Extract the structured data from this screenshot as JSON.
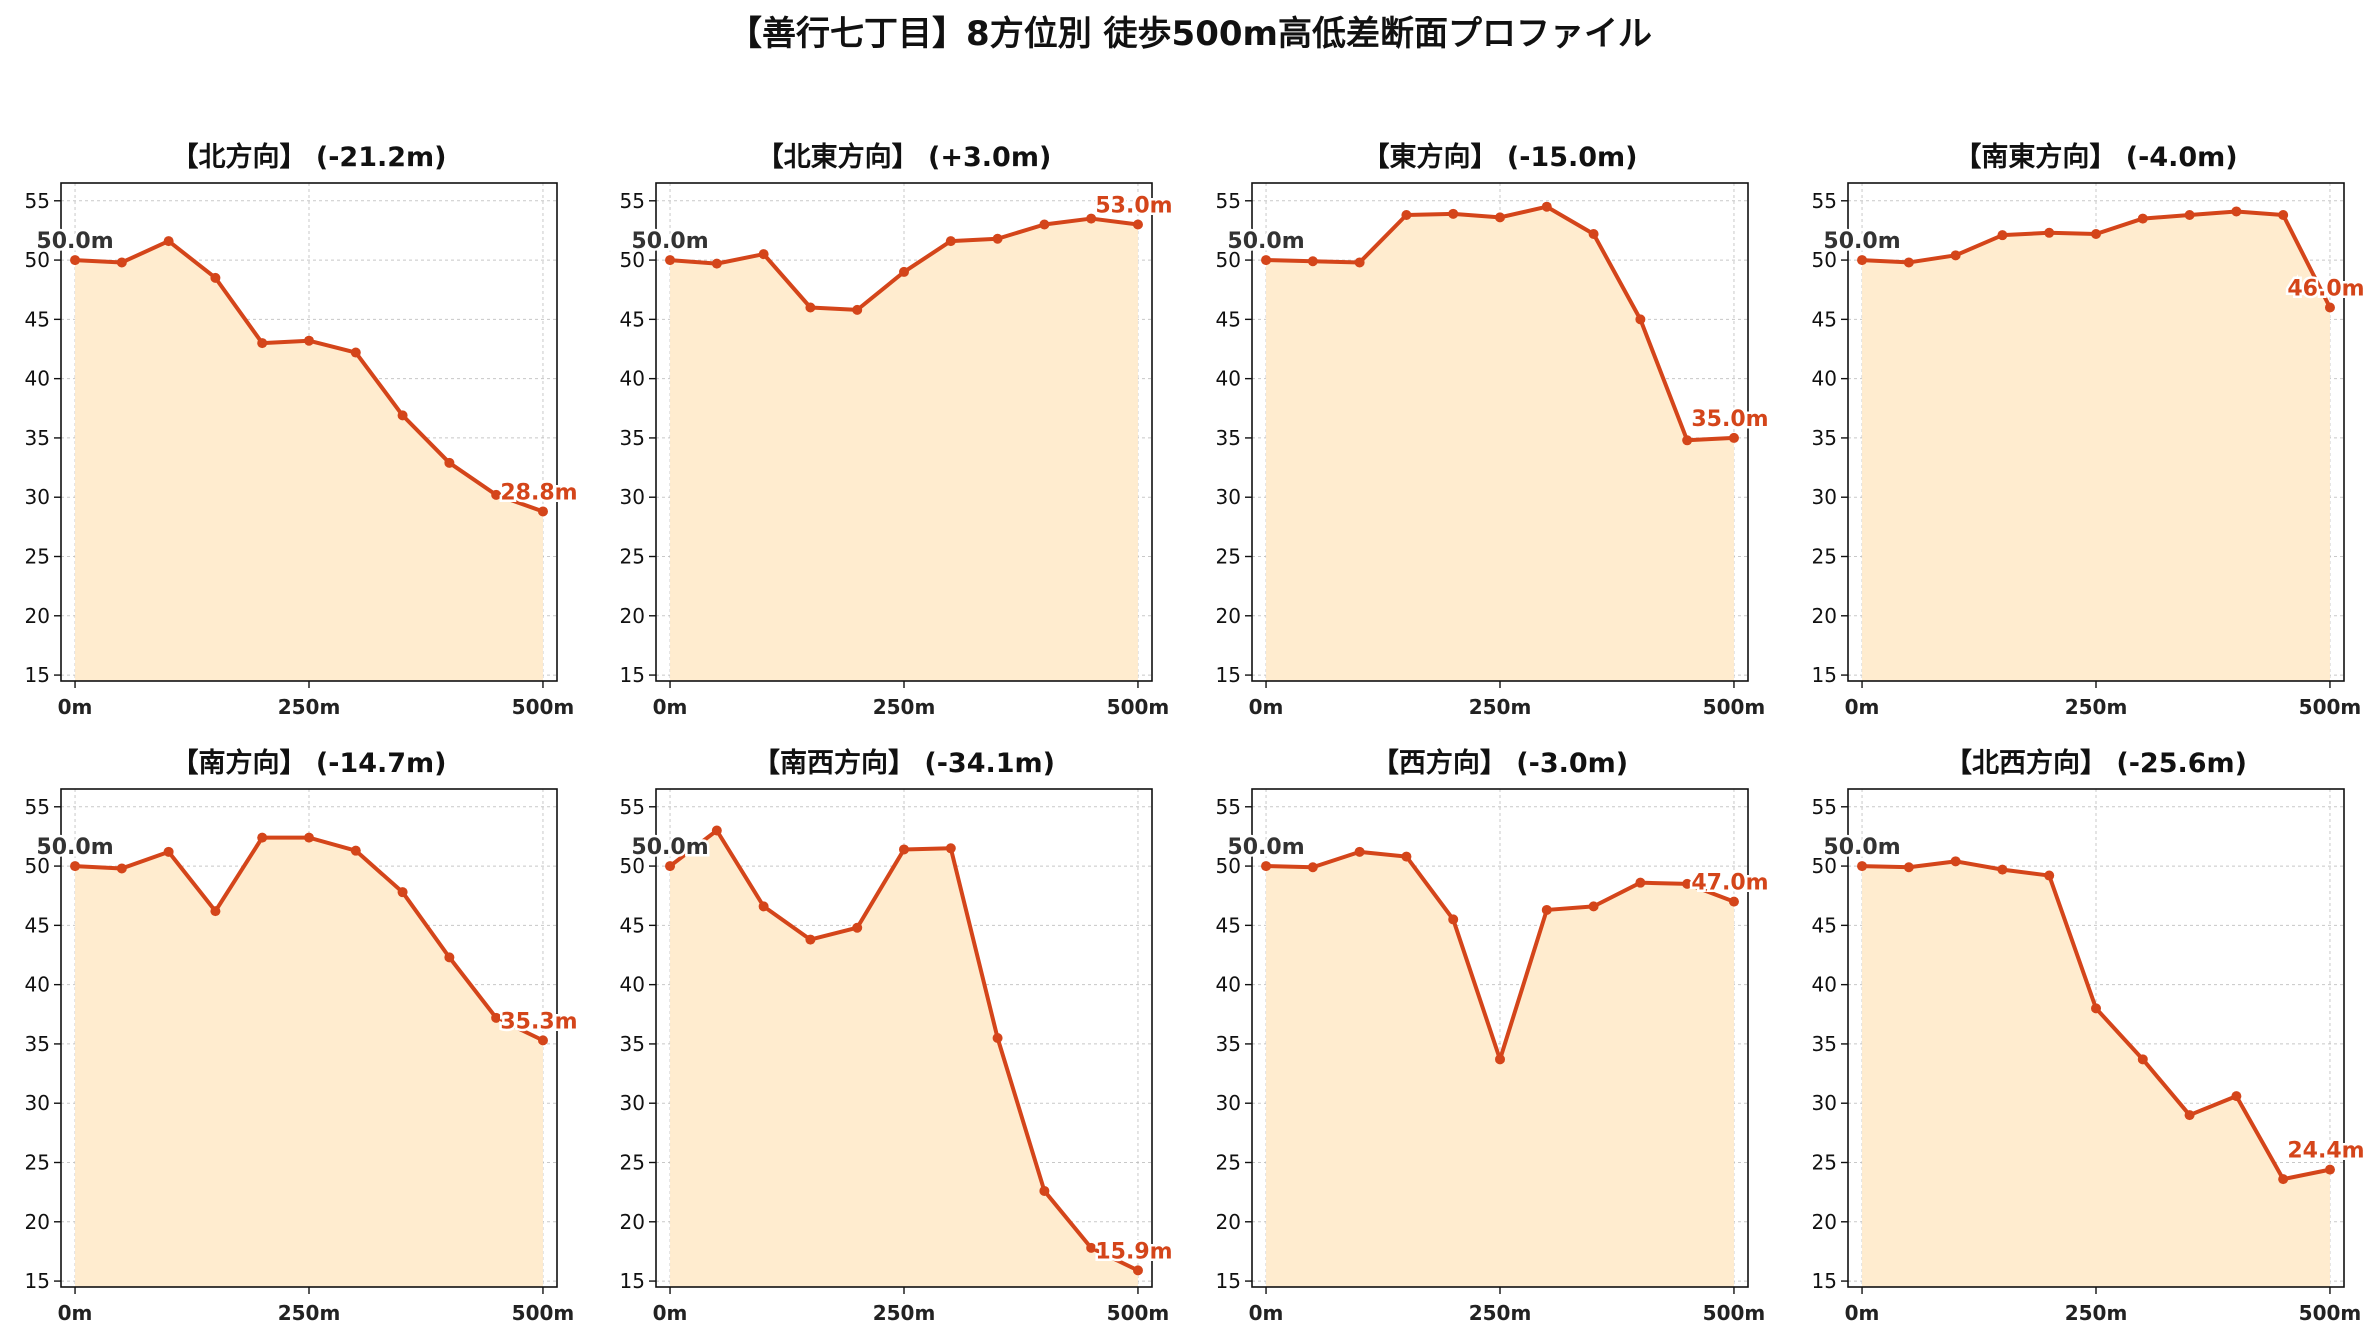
{
  "page": {
    "title": "【善行七丁目】8方位別 徒歩500m高低差断面プロファイル"
  },
  "colors": {
    "line": "#d4451a",
    "fill": "#ffeccf",
    "start_label": "#333333",
    "end_label": "#d4451a",
    "grid": "#bbbbbb"
  },
  "chart_data": [
    {
      "type": "area",
      "title": "【北方向】 (-21.2m)",
      "x": [
        0,
        50,
        100,
        150,
        200,
        250,
        300,
        350,
        400,
        450,
        500
      ],
      "values": [
        50.0,
        49.8,
        51.6,
        48.5,
        43.0,
        43.2,
        42.2,
        36.9,
        32.9,
        30.2,
        28.8
      ],
      "start_label": "50.0m",
      "end_label": "28.8m",
      "xtick_labels": [
        "0m",
        "250m",
        "500m"
      ],
      "xticks": [
        0,
        250,
        500
      ],
      "yticks": [
        15,
        20,
        25,
        30,
        35,
        40,
        45,
        50,
        55
      ],
      "xlim": [
        -15,
        515
      ],
      "ylim": [
        14.5,
        56.5
      ],
      "grid": true
    },
    {
      "type": "area",
      "title": "【北東方向】 (+3.0m)",
      "x": [
        0,
        50,
        100,
        150,
        200,
        250,
        300,
        350,
        400,
        450,
        500
      ],
      "values": [
        50.0,
        49.7,
        50.5,
        46.0,
        45.8,
        49.0,
        51.6,
        51.8,
        53.0,
        53.5,
        53.0
      ],
      "start_label": "50.0m",
      "end_label": "53.0m",
      "xtick_labels": [
        "0m",
        "250m",
        "500m"
      ],
      "xticks": [
        0,
        250,
        500
      ],
      "yticks": [
        15,
        20,
        25,
        30,
        35,
        40,
        45,
        50,
        55
      ],
      "xlim": [
        -15,
        515
      ],
      "ylim": [
        14.5,
        56.5
      ],
      "grid": true
    },
    {
      "type": "area",
      "title": "【東方向】 (-15.0m)",
      "x": [
        0,
        50,
        100,
        150,
        200,
        250,
        300,
        350,
        400,
        450,
        500
      ],
      "values": [
        50.0,
        49.9,
        49.8,
        53.8,
        53.9,
        53.6,
        54.5,
        52.2,
        45.0,
        34.8,
        35.0
      ],
      "start_label": "50.0m",
      "end_label": "35.0m",
      "xtick_labels": [
        "0m",
        "250m",
        "500m"
      ],
      "xticks": [
        0,
        250,
        500
      ],
      "yticks": [
        15,
        20,
        25,
        30,
        35,
        40,
        45,
        50,
        55
      ],
      "xlim": [
        -15,
        515
      ],
      "ylim": [
        14.5,
        56.5
      ],
      "grid": true
    },
    {
      "type": "area",
      "title": "【南東方向】 (-4.0m)",
      "x": [
        0,
        50,
        100,
        150,
        200,
        250,
        300,
        350,
        400,
        450,
        500
      ],
      "values": [
        50.0,
        49.8,
        50.4,
        52.1,
        52.3,
        52.2,
        53.5,
        53.8,
        54.1,
        53.8,
        46.0
      ],
      "start_label": "50.0m",
      "end_label": "46.0m",
      "xtick_labels": [
        "0m",
        "250m",
        "500m"
      ],
      "xticks": [
        0,
        250,
        500
      ],
      "yticks": [
        15,
        20,
        25,
        30,
        35,
        40,
        45,
        50,
        55
      ],
      "xlim": [
        -15,
        515
      ],
      "ylim": [
        14.5,
        56.5
      ],
      "grid": true
    },
    {
      "type": "area",
      "title": "【南方向】 (-14.7m)",
      "x": [
        0,
        50,
        100,
        150,
        200,
        250,
        300,
        350,
        400,
        450,
        500
      ],
      "values": [
        50.0,
        49.8,
        51.2,
        46.2,
        52.4,
        52.4,
        51.3,
        47.8,
        42.3,
        37.2,
        35.3
      ],
      "start_label": "50.0m",
      "end_label": "35.3m",
      "xtick_labels": [
        "0m",
        "250m",
        "500m"
      ],
      "xticks": [
        0,
        250,
        500
      ],
      "yticks": [
        15,
        20,
        25,
        30,
        35,
        40,
        45,
        50,
        55
      ],
      "xlim": [
        -15,
        515
      ],
      "ylim": [
        14.5,
        56.5
      ],
      "grid": true
    },
    {
      "type": "area",
      "title": "【南西方向】 (-34.1m)",
      "x": [
        0,
        50,
        100,
        150,
        200,
        250,
        300,
        350,
        400,
        450,
        500
      ],
      "values": [
        50.0,
        53.0,
        46.6,
        43.8,
        44.8,
        51.4,
        51.5,
        35.5,
        22.6,
        17.8,
        15.9
      ],
      "start_label": "50.0m",
      "end_label": "15.9m",
      "xtick_labels": [
        "0m",
        "250m",
        "500m"
      ],
      "xticks": [
        0,
        250,
        500
      ],
      "yticks": [
        15,
        20,
        25,
        30,
        35,
        40,
        45,
        50,
        55
      ],
      "xlim": [
        -15,
        515
      ],
      "ylim": [
        14.5,
        56.5
      ],
      "grid": true
    },
    {
      "type": "area",
      "title": "【西方向】 (-3.0m)",
      "x": [
        0,
        50,
        100,
        150,
        200,
        250,
        300,
        350,
        400,
        450,
        500
      ],
      "values": [
        50.0,
        49.9,
        51.2,
        50.8,
        45.5,
        33.7,
        46.3,
        46.6,
        48.6,
        48.5,
        47.0
      ],
      "start_label": "50.0m",
      "end_label": "47.0m",
      "xtick_labels": [
        "0m",
        "250m",
        "500m"
      ],
      "xticks": [
        0,
        250,
        500
      ],
      "yticks": [
        15,
        20,
        25,
        30,
        35,
        40,
        45,
        50,
        55
      ],
      "xlim": [
        -15,
        515
      ],
      "ylim": [
        14.5,
        56.5
      ],
      "grid": true
    },
    {
      "type": "area",
      "title": "【北西方向】 (-25.6m)",
      "x": [
        0,
        50,
        100,
        150,
        200,
        250,
        300,
        350,
        400,
        450,
        500
      ],
      "values": [
        50.0,
        49.9,
        50.4,
        49.7,
        49.2,
        38.0,
        33.7,
        29.0,
        30.6,
        23.6,
        24.4
      ],
      "start_label": "50.0m",
      "end_label": "24.4m",
      "xtick_labels": [
        "0m",
        "250m",
        "500m"
      ],
      "xticks": [
        0,
        250,
        500
      ],
      "yticks": [
        15,
        20,
        25,
        30,
        35,
        40,
        45,
        50,
        55
      ],
      "xlim": [
        -15,
        515
      ],
      "ylim": [
        14.5,
        56.5
      ],
      "grid": true
    }
  ]
}
